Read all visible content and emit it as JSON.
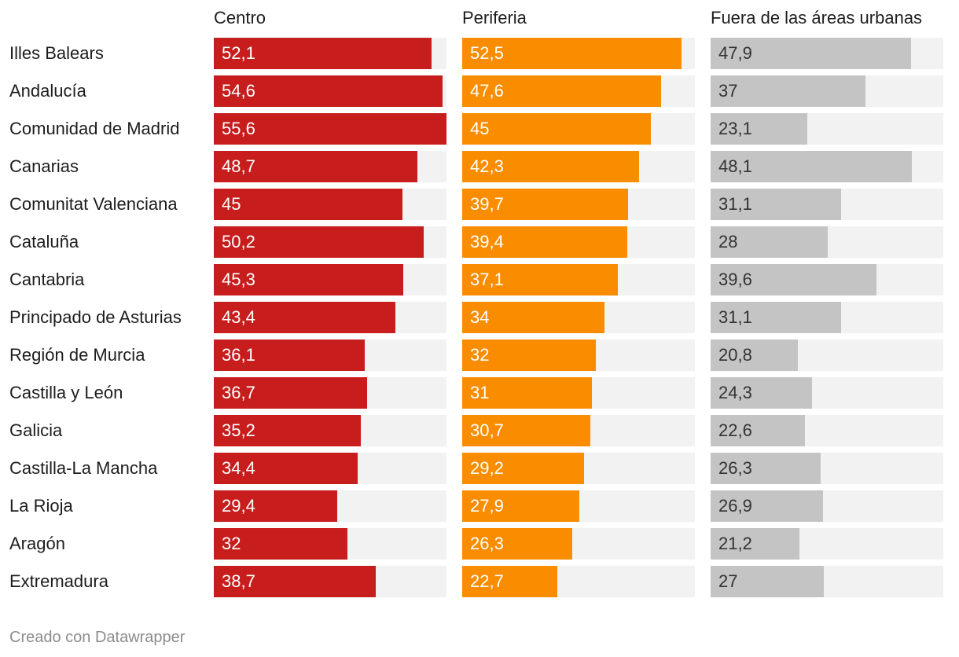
{
  "chart_data": {
    "type": "bar",
    "layout": "split-bars",
    "categories": [
      "Illes Balears",
      "Andalucía",
      "Comunidad de Madrid",
      "Canarias",
      "Comunitat Valenciana",
      "Cataluña",
      "Cantabria",
      "Principado de Asturias",
      "Región de Murcia",
      "Castilla y León",
      "Galicia",
      "Castilla-La Mancha",
      "La Rioja",
      "Aragón",
      "Extremadura"
    ],
    "series": [
      {
        "name": "Centro",
        "color": "#c71e1d",
        "text_color": "#ffffff",
        "labels": [
          "52,1",
          "54,6",
          "55,6",
          "48,7",
          "45",
          "50,2",
          "45,3",
          "43,4",
          "36,1",
          "36,7",
          "35,2",
          "34,4",
          "29,4",
          "32",
          "38,7"
        ],
        "values": [
          52.1,
          54.6,
          55.6,
          48.7,
          45,
          50.2,
          45.3,
          43.4,
          36.1,
          36.7,
          35.2,
          34.4,
          29.4,
          32,
          38.7
        ],
        "max": 55.6
      },
      {
        "name": "Periferia",
        "color": "#fa8c00",
        "text_color": "#ffffff",
        "labels": [
          "52,5",
          "47,6",
          "45",
          "42,3",
          "39,7",
          "39,4",
          "37,1",
          "34",
          "32",
          "31",
          "30,7",
          "29,2",
          "27,9",
          "26,3",
          "22,7"
        ],
        "values": [
          52.5,
          47.6,
          45,
          42.3,
          39.7,
          39.4,
          37.1,
          34,
          32,
          31,
          30.7,
          29.2,
          27.9,
          26.3,
          22.7
        ],
        "max": 55.6
      },
      {
        "name": "Fuera de las áreas urbanas",
        "color": "#c4c4c4",
        "text_color": "#333333",
        "labels": [
          "47,9",
          "37",
          "23,1",
          "48,1",
          "31,1",
          "28",
          "39,6",
          "31,1",
          "20,8",
          "24,3",
          "22,6",
          "26,3",
          "26,9",
          "21,2",
          "27"
        ],
        "values": [
          47.9,
          37,
          23.1,
          48.1,
          31.1,
          28,
          39.6,
          31.1,
          20.8,
          24.3,
          22.6,
          26.3,
          26.9,
          21.2,
          27
        ],
        "max": 55.6
      }
    ],
    "track_color": "#f2f2f2"
  },
  "footer": {
    "credit": "Creado con Datawrapper"
  }
}
